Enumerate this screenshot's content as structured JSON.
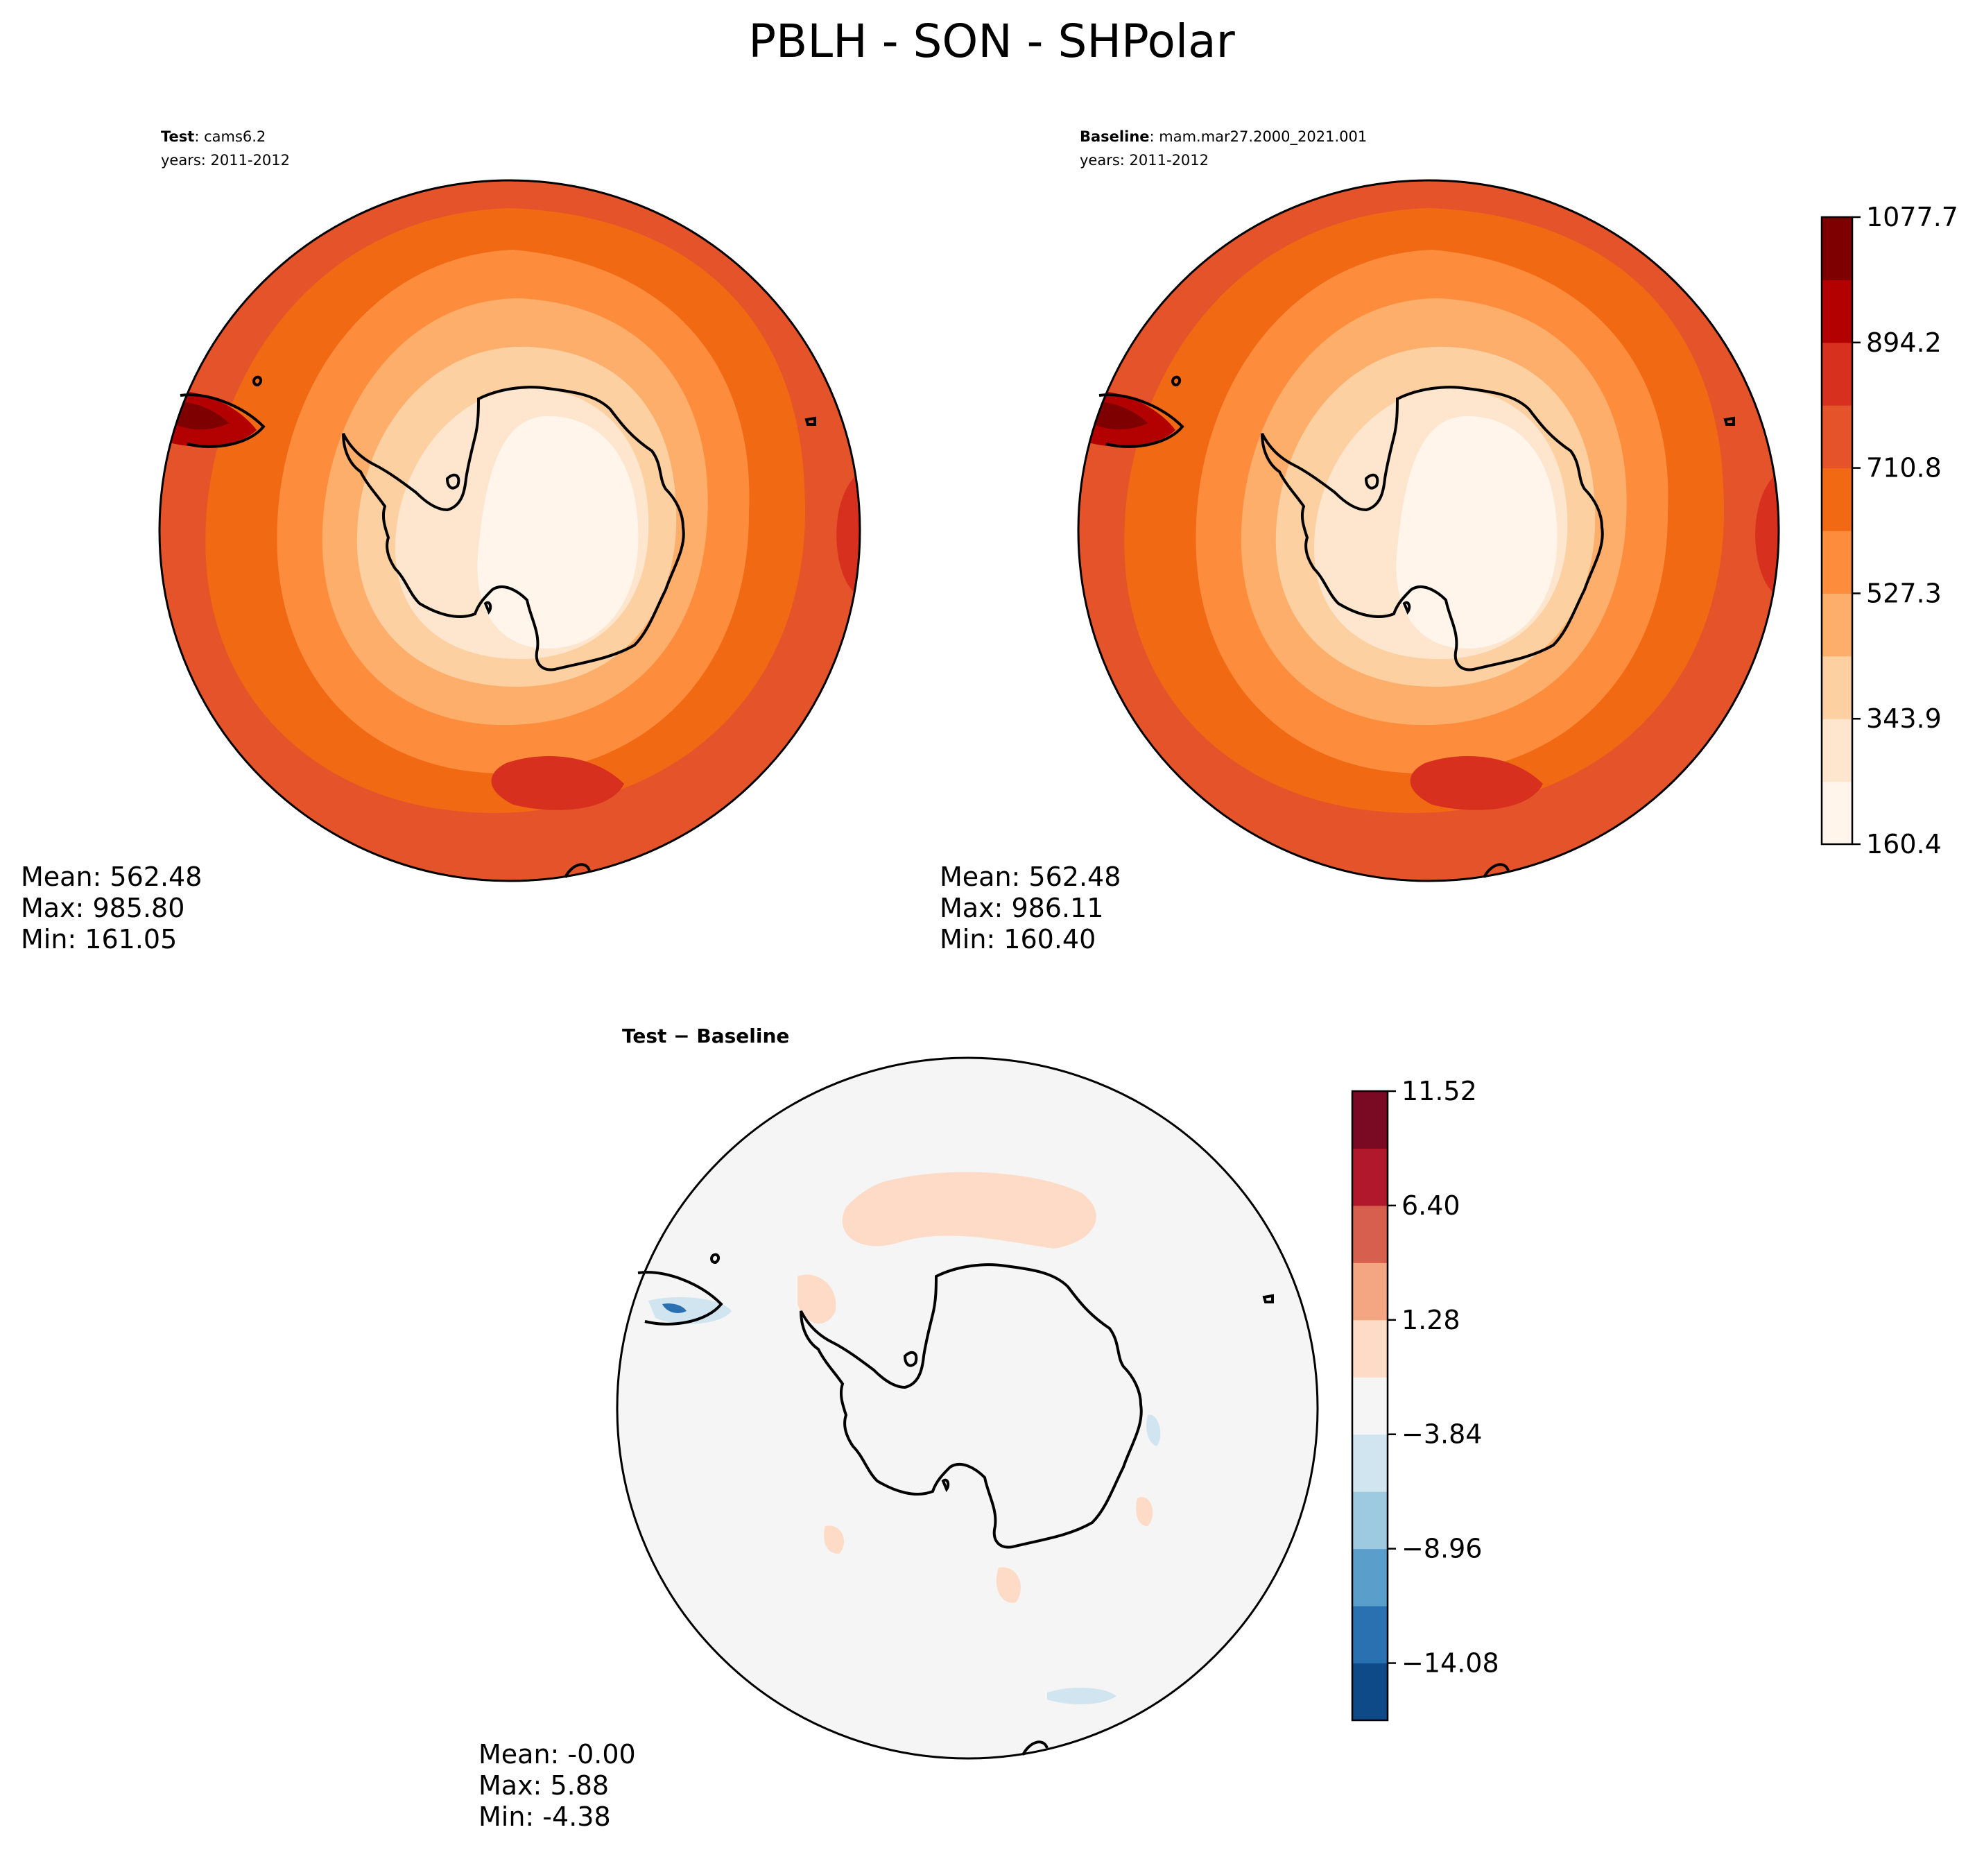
{
  "figure": {
    "title": "PBLH - SON - SHPolar"
  },
  "panels": {
    "test": {
      "label_bold": "Test",
      "label_rest": ": cams6.2",
      "years": "years: 2011-2012",
      "stats": {
        "mean": "Mean: 562.48",
        "max": "Max: 985.80",
        "min": "Min: 161.05"
      }
    },
    "baseline": {
      "label_bold": "Baseline",
      "label_rest": ": mam.mar27.2000_2021.001",
      "years": "years: 2011-2012",
      "stats": {
        "mean": "Mean: 562.48",
        "max": "Max: 986.11",
        "min": "Min: 160.40"
      }
    },
    "diff": {
      "label": "Test − Baseline",
      "stats": {
        "mean": "Mean: -0.00",
        "max": "Max:  5.88",
        "min": "Min: -4.38"
      }
    }
  },
  "colorbars": {
    "main": {
      "colors": [
        "#fff5eb",
        "#fee6ce",
        "#fdd0a2",
        "#fdae6b",
        "#fd8d3c",
        "#f16913",
        "#e5532a",
        "#d7301f",
        "#b30000",
        "#7f0000"
      ],
      "colors_note": "lowest to highest",
      "tick_labels": [
        "160.4",
        "343.9",
        "527.3",
        "710.8",
        "894.2",
        "1077.7"
      ]
    },
    "diff": {
      "colors": [
        "#0d4a87",
        "#2a71b2",
        "#5a9ecc",
        "#9ecae1",
        "#d1e5f0",
        "#f5f5f5",
        "#fddbc7",
        "#f4a582",
        "#d6604d",
        "#b2182b",
        "#7a0a23"
      ],
      "colors_note": "lowest to highest",
      "tick_labels": [
        "−14.08",
        "−8.96",
        "−3.84",
        "1.28",
        "6.40",
        "11.52"
      ]
    }
  }
}
